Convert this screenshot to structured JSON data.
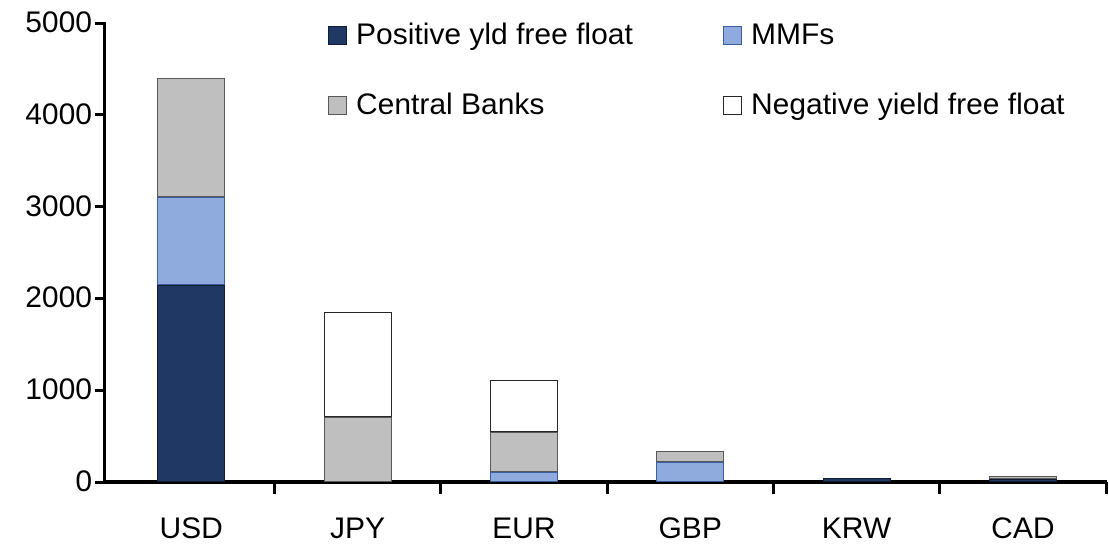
{
  "chart_data": {
    "type": "bar",
    "stacked": true,
    "title": "",
    "xlabel": "",
    "ylabel": "",
    "categories": [
      "USD",
      "JPY",
      "EUR",
      "GBP",
      "KRW",
      "CAD"
    ],
    "series": [
      {
        "name": "Positive yld free float",
        "color": "#1f3864",
        "border": "#101d33",
        "values": [
          2150,
          0,
          0,
          0,
          45,
          30
        ]
      },
      {
        "name": "MMFs",
        "color": "#8faadc",
        "border": "#3a5e9e",
        "values": [
          960,
          0,
          110,
          220,
          0,
          0
        ]
      },
      {
        "name": "Central Banks",
        "color": "#bfbfbf",
        "border": "#595959",
        "values": [
          1290,
          705,
          430,
          115,
          0,
          35
        ]
      },
      {
        "name": "Negative yield free float",
        "color": "#ffffff",
        "border": "#262626",
        "values": [
          0,
          1145,
          575,
          0,
          0,
          0
        ]
      }
    ],
    "totals": [
      4400,
      1850,
      1115,
      335,
      45,
      65
    ],
    "ylim": [
      0,
      5000
    ],
    "yticks": [
      0,
      1000,
      2000,
      3000,
      4000,
      5000
    ],
    "grid": false,
    "legend_position": "top",
    "legend_columns": 2,
    "axis_color": "#000000",
    "background_color": "#ffffff"
  }
}
